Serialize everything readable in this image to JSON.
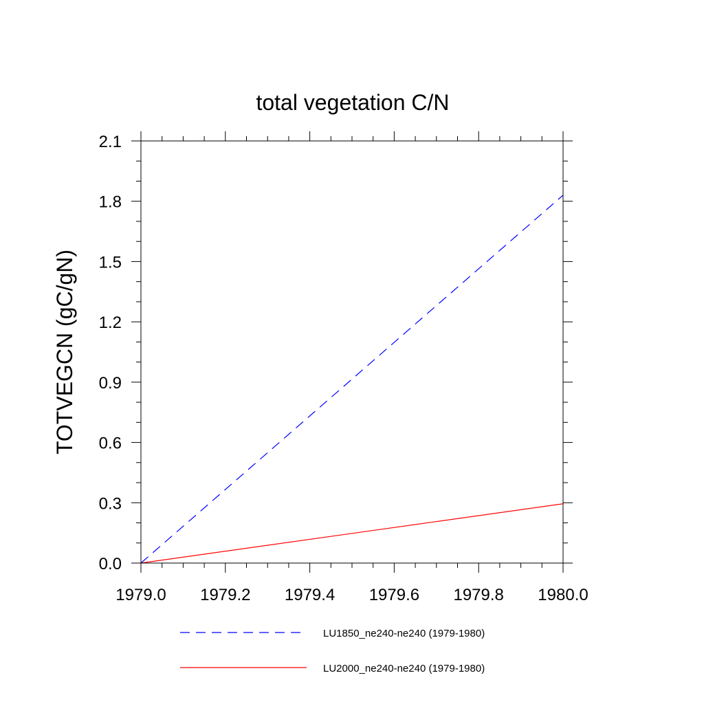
{
  "chart_data": {
    "type": "line",
    "title": "total vegetation C/N",
    "xlabel": "",
    "ylabel": "TOTVEGCN  (gC/gN)",
    "xlim": [
      1979.0,
      1980.0
    ],
    "ylim": [
      0.0,
      2.1
    ],
    "x_ticks": [
      "1979.0",
      "1979.2",
      "1979.4",
      "1979.6",
      "1979.8",
      "1980.0"
    ],
    "y_ticks": [
      "0.0",
      "0.3",
      "0.6",
      "0.9",
      "1.2",
      "1.5",
      "1.8",
      "2.1"
    ],
    "grid": false,
    "legend_position": "bottom",
    "series": [
      {
        "name": "LU1850_ne240-ne240 (1979-1980)",
        "color": "#0000ff",
        "style": "dashed",
        "x": [
          1979.0,
          1980.0
        ],
        "y": [
          0.0,
          1.83
        ]
      },
      {
        "name": "LU2000_ne240-ne240 (1979-1980)",
        "color": "#ff0000",
        "style": "solid",
        "x": [
          1979.0,
          1980.0
        ],
        "y": [
          0.0,
          0.295
        ]
      }
    ]
  }
}
